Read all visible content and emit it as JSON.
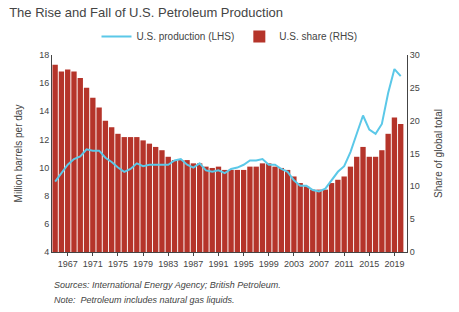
{
  "chart_data": {
    "type": "combo",
    "title": "The Rise and Fall of U.S. Petroleum Production",
    "ylabel": "Million barrels per day",
    "y2label": "Share of global total",
    "annotations": [
      "Sources: International Energy Agency; British Petroleum.",
      "Note:  Petroleum includes natural gas liquids."
    ],
    "x": [
      1965,
      1966,
      1967,
      1968,
      1969,
      1970,
      1971,
      1972,
      1973,
      1974,
      1975,
      1976,
      1977,
      1978,
      1979,
      1980,
      1981,
      1982,
      1983,
      1984,
      1985,
      1986,
      1987,
      1988,
      1989,
      1990,
      1991,
      1992,
      1993,
      1994,
      1995,
      1996,
      1997,
      1998,
      1999,
      2000,
      2001,
      2002,
      2003,
      2004,
      2005,
      2006,
      2007,
      2008,
      2009,
      2010,
      2011,
      2012,
      2013,
      2014,
      2015,
      2016,
      2017,
      2018,
      2019,
      2020
    ],
    "xlim": [
      1964.5,
      2021
    ],
    "xticks": [
      1967,
      1971,
      1975,
      1979,
      1983,
      1987,
      1991,
      1995,
      1999,
      2003,
      2007,
      2011,
      2015,
      2019
    ],
    "ylim": [
      4,
      18
    ],
    "yticks": [
      4,
      6,
      8,
      10,
      12,
      14,
      16,
      18
    ],
    "y2lim": [
      0,
      30
    ],
    "y2ticks": [
      0,
      5,
      10,
      15,
      20,
      25,
      30
    ],
    "grid": false,
    "legend": "top",
    "series": [
      {
        "name": "U.S. production (LHS)",
        "type": "line",
        "color": "#5bc8e8",
        "values": [
          9.0,
          9.6,
          10.2,
          10.6,
          10.8,
          11.3,
          11.2,
          11.2,
          10.7,
          10.4,
          10.0,
          9.7,
          9.9,
          10.3,
          10.1,
          10.2,
          10.2,
          10.2,
          10.2,
          10.5,
          10.6,
          10.2,
          10.0,
          10.3,
          9.8,
          9.7,
          9.8,
          9.6,
          9.9,
          10.0,
          10.2,
          10.5,
          10.5,
          10.6,
          10.2,
          10.2,
          9.9,
          9.7,
          9.1,
          8.7,
          8.7,
          8.4,
          8.3,
          8.5,
          9.1,
          9.7,
          10.1,
          11.1,
          12.4,
          13.7,
          12.7,
          12.4,
          13.1,
          15.3,
          17.0,
          16.5
        ]
      },
      {
        "name": "U.S. share (RHS)",
        "type": "bar",
        "axis": "y2",
        "color": "#b5342a",
        "values": [
          28.5,
          27.5,
          27.8,
          27.5,
          26.5,
          25.0,
          23.5,
          22.0,
          20.0,
          19.0,
          18.0,
          17.5,
          17.5,
          17.5,
          17.0,
          16.5,
          16.0,
          15.5,
          14.5,
          14.0,
          14.0,
          14.0,
          13.5,
          13.5,
          13.0,
          12.8,
          13.0,
          12.5,
          12.5,
          12.5,
          12.5,
          13.0,
          13.0,
          13.5,
          13.5,
          13.0,
          12.8,
          12.5,
          11.5,
          10.5,
          10.0,
          9.5,
          9.5,
          9.5,
          10.5,
          11.0,
          11.5,
          13.0,
          14.5,
          16.0,
          14.5,
          14.5,
          15.5,
          18.0,
          20.5,
          19.5
        ]
      }
    ]
  }
}
